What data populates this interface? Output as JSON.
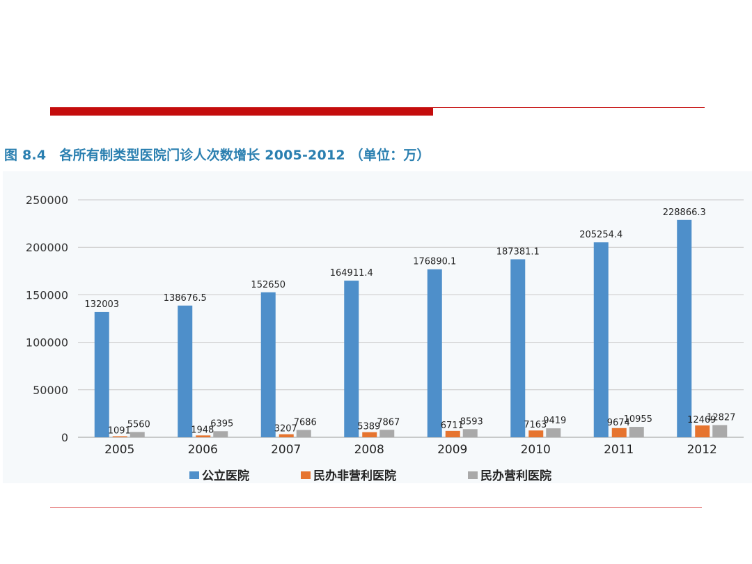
{
  "figure_title": "图 8.4　各所有制类型医院门诊人次数增长 2005-2012 （单位：万）",
  "colors": {
    "public": "#4e8fca",
    "private_nonprofit": "#e6742f",
    "private_forprofit": "#a9a9a9",
    "title": "#2a7fb0",
    "accent_red": "#c40c0c"
  },
  "chart_data": {
    "type": "bar",
    "title": "",
    "xlabel": "",
    "ylabel": "",
    "ylim": [
      0,
      250000
    ],
    "yticks": [
      0,
      50000,
      100000,
      150000,
      200000,
      250000
    ],
    "ytick_labels": [
      "0",
      "50000",
      "100000",
      "150000",
      "200000",
      "250000"
    ],
    "grid": true,
    "legend": "bottom",
    "categories": [
      "2005",
      "2006",
      "2007",
      "2008",
      "2009",
      "2010",
      "2011",
      "2012"
    ],
    "series": [
      {
        "name": "公立医院",
        "values": [
          132003,
          138676.5,
          152650,
          164911.4,
          176890.1,
          187381.1,
          205254.4,
          228866.3
        ],
        "labels": [
          "132003",
          "138676.5",
          "152650",
          "164911.4",
          "176890.1",
          "187381.1",
          "205254.4",
          "228866.3"
        ]
      },
      {
        "name": "民办非营利医院",
        "values": [
          1091,
          1948,
          3207,
          5389,
          6711,
          7163,
          9674,
          12469
        ],
        "labels": [
          "1091",
          "1948",
          "3207",
          "5389",
          "6711",
          "7163",
          "9674",
          "12469"
        ]
      },
      {
        "name": "民办营利医院",
        "values": [
          5560,
          6395,
          7686,
          7867,
          8593,
          9419,
          10955,
          12827
        ],
        "labels": [
          "5560",
          "6395",
          "7686",
          "7867",
          "8593",
          "9419",
          "10955",
          "12827"
        ]
      }
    ]
  }
}
